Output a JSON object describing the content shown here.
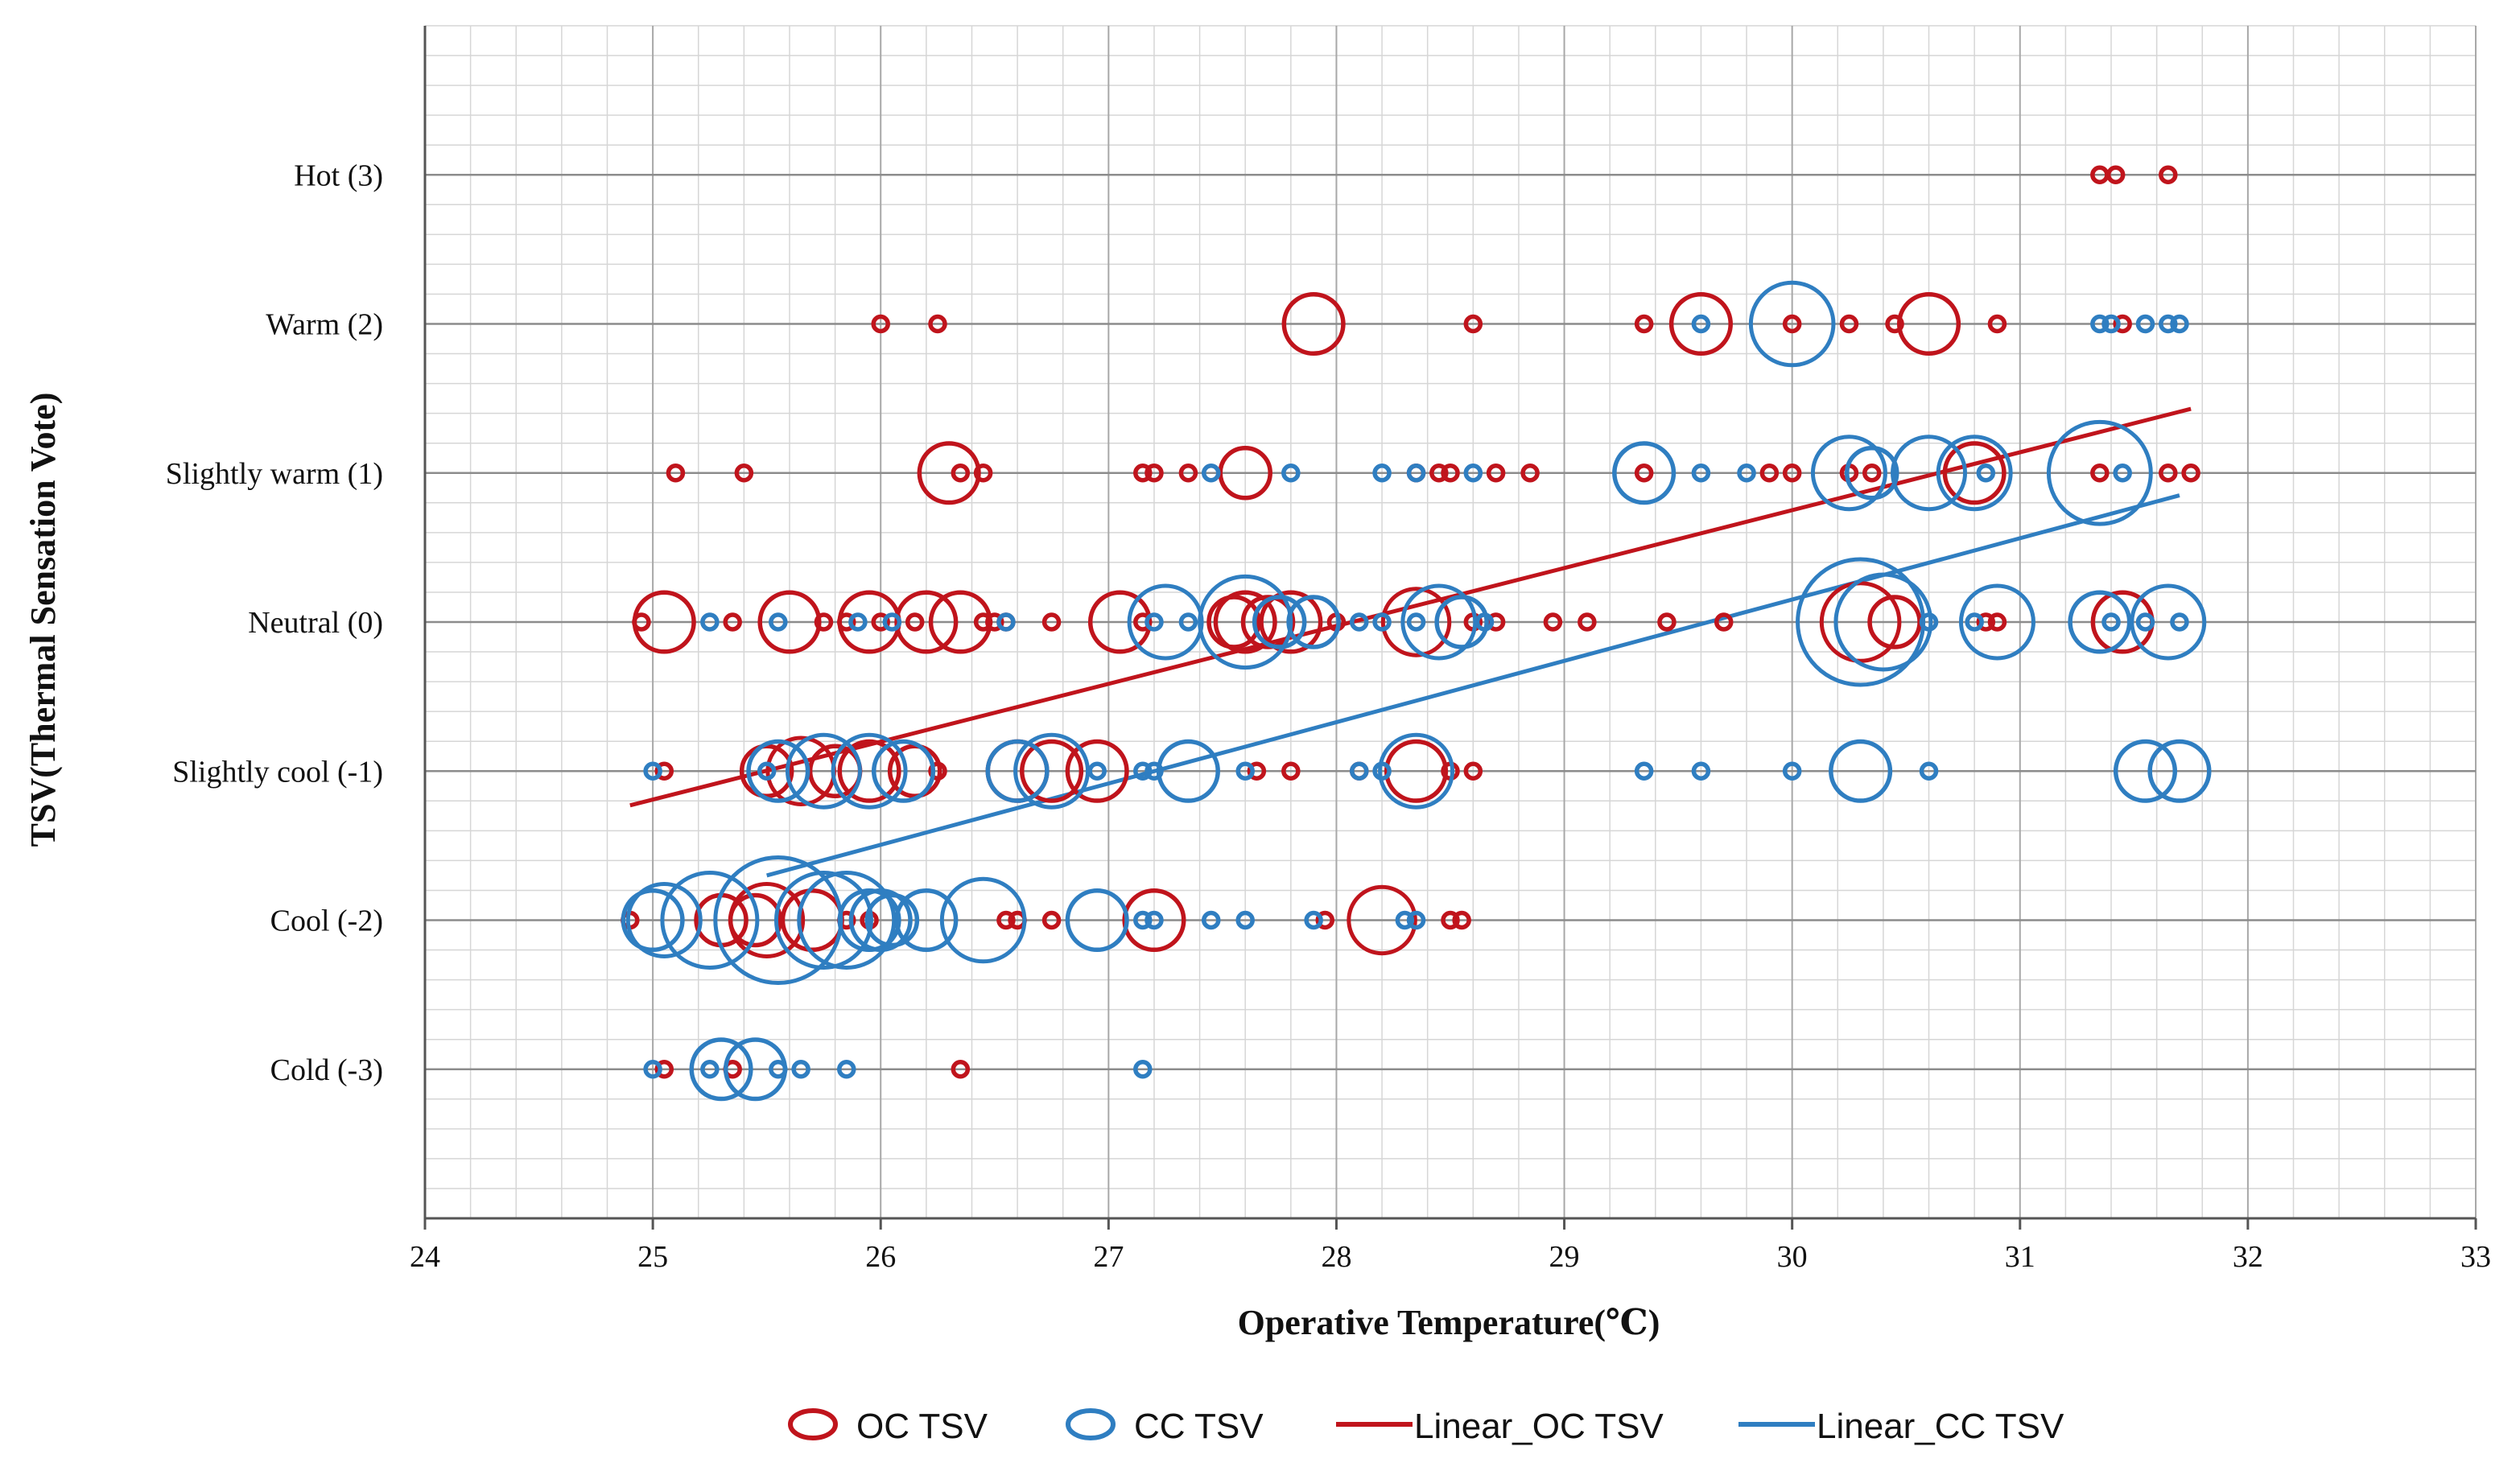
{
  "chart_data": {
    "type": "scatter",
    "variant": "bubble",
    "title": "",
    "xlabel": "Operative Temperature(℃)",
    "ylabel": "TSV(Thermal Sensation Vote)",
    "xlim": [
      24,
      33
    ],
    "ylim": [
      -4,
      4
    ],
    "x_ticks": [
      24,
      25,
      26,
      27,
      28,
      29,
      30,
      31,
      32,
      33
    ],
    "y_ticks": [
      {
        "value": 3,
        "label": "Hot (3)"
      },
      {
        "value": 2,
        "label": "Warm (2)"
      },
      {
        "value": 1,
        "label": "Slightly warm (1)"
      },
      {
        "value": 0,
        "label": "Neutral (0)"
      },
      {
        "value": -1,
        "label": "Slightly cool (-1)"
      },
      {
        "value": -2,
        "label": "Cool (-2)"
      },
      {
        "value": -3,
        "label": "Cold (-3)"
      }
    ],
    "grid": true,
    "minor_grid": true,
    "legend_position": "bottom",
    "series": [
      {
        "name": "OC TSV",
        "kind": "bubble",
        "color": "#C0141C",
        "points": [
          [
            31.35,
            3,
            1
          ],
          [
            31.42,
            3,
            1
          ],
          [
            31.65,
            3,
            1
          ],
          [
            26.0,
            2,
            1
          ],
          [
            26.25,
            2,
            1
          ],
          [
            27.9,
            2,
            3
          ],
          [
            28.6,
            2,
            1
          ],
          [
            29.35,
            2,
            1
          ],
          [
            29.6,
            2,
            3
          ],
          [
            30.0,
            2,
            1
          ],
          [
            30.25,
            2,
            1
          ],
          [
            30.45,
            2,
            1
          ],
          [
            30.6,
            2,
            3
          ],
          [
            30.9,
            2,
            1
          ],
          [
            31.45,
            2,
            1
          ],
          [
            25.1,
            1,
            1
          ],
          [
            25.4,
            1,
            1
          ],
          [
            26.3,
            1,
            3
          ],
          [
            26.35,
            1,
            1
          ],
          [
            26.45,
            1,
            1
          ],
          [
            27.15,
            1,
            1
          ],
          [
            27.2,
            1,
            1
          ],
          [
            27.35,
            1,
            1
          ],
          [
            27.6,
            1,
            2
          ],
          [
            28.35,
            1,
            1
          ],
          [
            28.45,
            1,
            1
          ],
          [
            28.5,
            1,
            1
          ],
          [
            28.7,
            1,
            1
          ],
          [
            28.85,
            1,
            1
          ],
          [
            29.35,
            1,
            1
          ],
          [
            29.9,
            1,
            1
          ],
          [
            30.0,
            1,
            1
          ],
          [
            30.25,
            1,
            1
          ],
          [
            30.35,
            1,
            1
          ],
          [
            30.8,
            1,
            3
          ],
          [
            31.35,
            1,
            1
          ],
          [
            31.65,
            1,
            1
          ],
          [
            31.75,
            1,
            1
          ],
          [
            24.95,
            0,
            1
          ],
          [
            25.05,
            0,
            3
          ],
          [
            25.35,
            0,
            1
          ],
          [
            25.6,
            0,
            3
          ],
          [
            25.75,
            0,
            1
          ],
          [
            25.85,
            0,
            1
          ],
          [
            25.95,
            0,
            3
          ],
          [
            26.0,
            0,
            1
          ],
          [
            26.15,
            0,
            1
          ],
          [
            26.2,
            0,
            3
          ],
          [
            26.35,
            0,
            3
          ],
          [
            26.45,
            0,
            1
          ],
          [
            26.5,
            0,
            1
          ],
          [
            26.55,
            0,
            1
          ],
          [
            26.75,
            0,
            1
          ],
          [
            27.05,
            0,
            3
          ],
          [
            27.15,
            0,
            1
          ],
          [
            27.55,
            0,
            2
          ],
          [
            27.6,
            0,
            3
          ],
          [
            27.7,
            0,
            2
          ],
          [
            27.8,
            0,
            3
          ],
          [
            28.0,
            0,
            1
          ],
          [
            28.35,
            0,
            4
          ],
          [
            28.6,
            0,
            1
          ],
          [
            28.7,
            0,
            1
          ],
          [
            28.95,
            0,
            1
          ],
          [
            29.1,
            0,
            1
          ],
          [
            29.45,
            0,
            1
          ],
          [
            29.7,
            0,
            1
          ],
          [
            30.3,
            0,
            6
          ],
          [
            30.45,
            0,
            2
          ],
          [
            30.85,
            0,
            1
          ],
          [
            30.9,
            0,
            1
          ],
          [
            31.45,
            0,
            3
          ],
          [
            25.05,
            -1,
            1
          ],
          [
            25.5,
            -1,
            2
          ],
          [
            25.65,
            -1,
            4
          ],
          [
            25.8,
            -1,
            2
          ],
          [
            25.95,
            -1,
            3
          ],
          [
            26.15,
            -1,
            2
          ],
          [
            26.25,
            -1,
            1
          ],
          [
            26.6,
            -1,
            3
          ],
          [
            26.75,
            -1,
            3
          ],
          [
            26.95,
            -1,
            3
          ],
          [
            27.65,
            -1,
            1
          ],
          [
            27.8,
            -1,
            1
          ],
          [
            28.1,
            -1,
            1
          ],
          [
            28.35,
            -1,
            3
          ],
          [
            28.5,
            -1,
            1
          ],
          [
            28.6,
            -1,
            1
          ],
          [
            24.9,
            -2,
            1
          ],
          [
            25.3,
            -2,
            2
          ],
          [
            25.45,
            -2,
            2
          ],
          [
            25.5,
            -2,
            5
          ],
          [
            25.7,
            -2,
            3
          ],
          [
            25.85,
            -2,
            1
          ],
          [
            25.95,
            -2,
            1
          ],
          [
            26.55,
            -2,
            1
          ],
          [
            26.6,
            -2,
            1
          ],
          [
            26.75,
            -2,
            1
          ],
          [
            27.2,
            -2,
            3
          ],
          [
            27.95,
            -2,
            1
          ],
          [
            28.2,
            -2,
            4
          ],
          [
            28.5,
            -2,
            1
          ],
          [
            28.55,
            -2,
            1
          ],
          [
            25.05,
            -3,
            1
          ],
          [
            25.35,
            -3,
            1
          ],
          [
            26.35,
            -3,
            1
          ]
        ]
      },
      {
        "name": "CC TSV",
        "kind": "bubble",
        "color": "#2F7EC1",
        "points": [
          [
            29.6,
            2,
            1
          ],
          [
            30.0,
            2,
            7
          ],
          [
            31.35,
            2,
            1
          ],
          [
            31.4,
            2,
            1
          ],
          [
            31.55,
            2,
            1
          ],
          [
            31.65,
            2,
            1
          ],
          [
            31.7,
            2,
            1
          ],
          [
            27.45,
            1,
            1
          ],
          [
            27.8,
            1,
            1
          ],
          [
            28.2,
            1,
            1
          ],
          [
            28.35,
            1,
            1
          ],
          [
            28.6,
            1,
            1
          ],
          [
            29.35,
            1,
            3
          ],
          [
            29.6,
            1,
            1
          ],
          [
            29.8,
            1,
            1
          ],
          [
            30.25,
            1,
            5
          ],
          [
            30.35,
            1,
            2
          ],
          [
            30.6,
            1,
            5
          ],
          [
            30.8,
            1,
            5
          ],
          [
            30.85,
            1,
            1
          ],
          [
            31.35,
            1,
            12
          ],
          [
            31.45,
            1,
            1
          ],
          [
            25.25,
            0,
            1
          ],
          [
            25.55,
            0,
            1
          ],
          [
            25.9,
            0,
            1
          ],
          [
            26.05,
            0,
            1
          ],
          [
            26.55,
            0,
            1
          ],
          [
            27.2,
            0,
            1
          ],
          [
            27.25,
            0,
            5
          ],
          [
            27.35,
            0,
            1
          ],
          [
            27.6,
            0,
            9
          ],
          [
            27.75,
            0,
            2
          ],
          [
            27.9,
            0,
            2
          ],
          [
            28.1,
            0,
            1
          ],
          [
            28.2,
            0,
            1
          ],
          [
            28.35,
            0,
            1
          ],
          [
            28.45,
            0,
            5
          ],
          [
            28.55,
            0,
            2
          ],
          [
            28.65,
            0,
            1
          ],
          [
            30.3,
            0,
            20
          ],
          [
            30.4,
            0,
            10
          ],
          [
            30.6,
            0,
            1
          ],
          [
            30.8,
            0,
            1
          ],
          [
            30.9,
            0,
            5
          ],
          [
            31.35,
            0,
            3
          ],
          [
            31.4,
            0,
            1
          ],
          [
            31.55,
            0,
            1
          ],
          [
            31.65,
            0,
            5
          ],
          [
            31.7,
            0,
            1
          ],
          [
            25.0,
            -1,
            1
          ],
          [
            25.5,
            -1,
            1
          ],
          [
            25.55,
            -1,
            3
          ],
          [
            25.75,
            -1,
            5
          ],
          [
            25.95,
            -1,
            5
          ],
          [
            26.1,
            -1,
            3
          ],
          [
            26.6,
            -1,
            3
          ],
          [
            26.75,
            -1,
            5
          ],
          [
            26.95,
            -1,
            1
          ],
          [
            27.15,
            -1,
            1
          ],
          [
            27.2,
            -1,
            1
          ],
          [
            27.35,
            -1,
            3
          ],
          [
            27.6,
            -1,
            1
          ],
          [
            28.1,
            -1,
            1
          ],
          [
            28.2,
            -1,
            1
          ],
          [
            28.35,
            -1,
            5
          ],
          [
            29.35,
            -1,
            1
          ],
          [
            29.6,
            -1,
            1
          ],
          [
            30.0,
            -1,
            1
          ],
          [
            30.3,
            -1,
            3
          ],
          [
            30.6,
            -1,
            1
          ],
          [
            31.55,
            -1,
            3
          ],
          [
            31.7,
            -1,
            3
          ],
          [
            25.0,
            -2,
            3
          ],
          [
            25.05,
            -2,
            5
          ],
          [
            25.25,
            -2,
            10
          ],
          [
            25.55,
            -2,
            20
          ],
          [
            25.75,
            -2,
            10
          ],
          [
            25.85,
            -2,
            10
          ],
          [
            25.95,
            -2,
            3
          ],
          [
            26.0,
            -2,
            3
          ],
          [
            26.05,
            -2,
            2
          ],
          [
            26.2,
            -2,
            3
          ],
          [
            26.45,
            -2,
            7
          ],
          [
            26.95,
            -2,
            3
          ],
          [
            27.15,
            -2,
            1
          ],
          [
            27.2,
            -2,
            1
          ],
          [
            27.45,
            -2,
            1
          ],
          [
            27.6,
            -2,
            1
          ],
          [
            27.9,
            -2,
            1
          ],
          [
            28.3,
            -2,
            1
          ],
          [
            28.35,
            -2,
            1
          ],
          [
            25.0,
            -3,
            1
          ],
          [
            25.25,
            -3,
            1
          ],
          [
            25.3,
            -3,
            3
          ],
          [
            25.45,
            -3,
            3
          ],
          [
            25.55,
            -3,
            1
          ],
          [
            25.65,
            -3,
            1
          ],
          [
            25.85,
            -3,
            1
          ],
          [
            27.15,
            -3,
            1
          ]
        ]
      },
      {
        "name": "Linear_OC TSV",
        "kind": "line",
        "color": "#C0141C",
        "points": [
          [
            24.9,
            -1.23
          ],
          [
            31.75,
            1.43
          ]
        ]
      },
      {
        "name": "Linear_CC TSV",
        "kind": "line",
        "color": "#2F7EC1",
        "points": [
          [
            25.5,
            -1.7
          ],
          [
            31.7,
            0.85
          ]
        ]
      }
    ]
  }
}
